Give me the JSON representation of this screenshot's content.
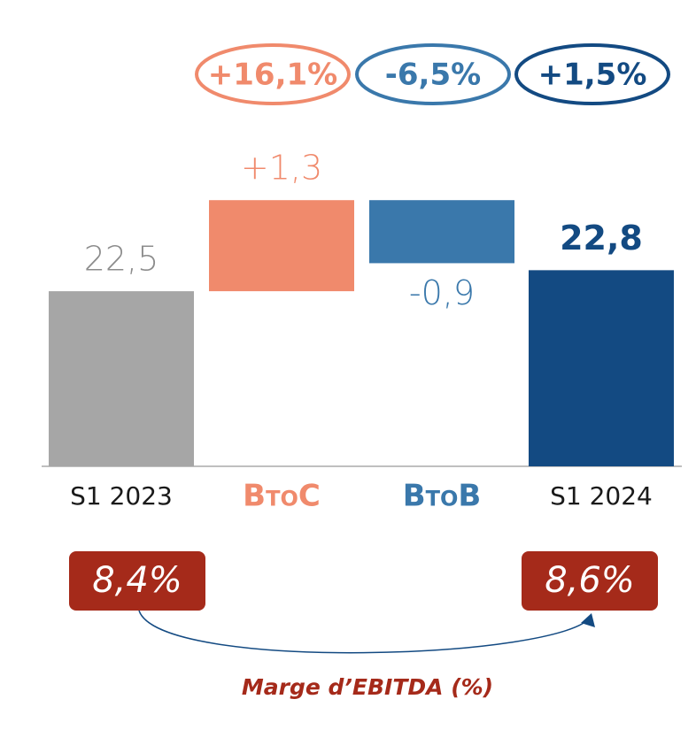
{
  "chart_data": {
    "type": "waterfall",
    "categories": [
      "S1 2023",
      "BtoC",
      "BtoB",
      "S1 2024"
    ],
    "values": [
      22.5,
      1.3,
      -0.9,
      22.8
    ],
    "value_labels": [
      "22,5",
      "+1,3",
      "-0,9",
      "22,8"
    ],
    "measure": [
      "absolute",
      "relative",
      "relative",
      "absolute"
    ],
    "colors": [
      "#a6a6a6",
      "#f08a6c",
      "#3a78ab",
      "#134a82"
    ],
    "ylim": [
      20,
      24.75
    ],
    "growth_labels": [
      "+16,1%",
      "-6,5%",
      "+1,5%"
    ],
    "margins": [
      "8,4%",
      "8,6%"
    ],
    "margin_caption": "Marge d’EBITDA (%)"
  }
}
